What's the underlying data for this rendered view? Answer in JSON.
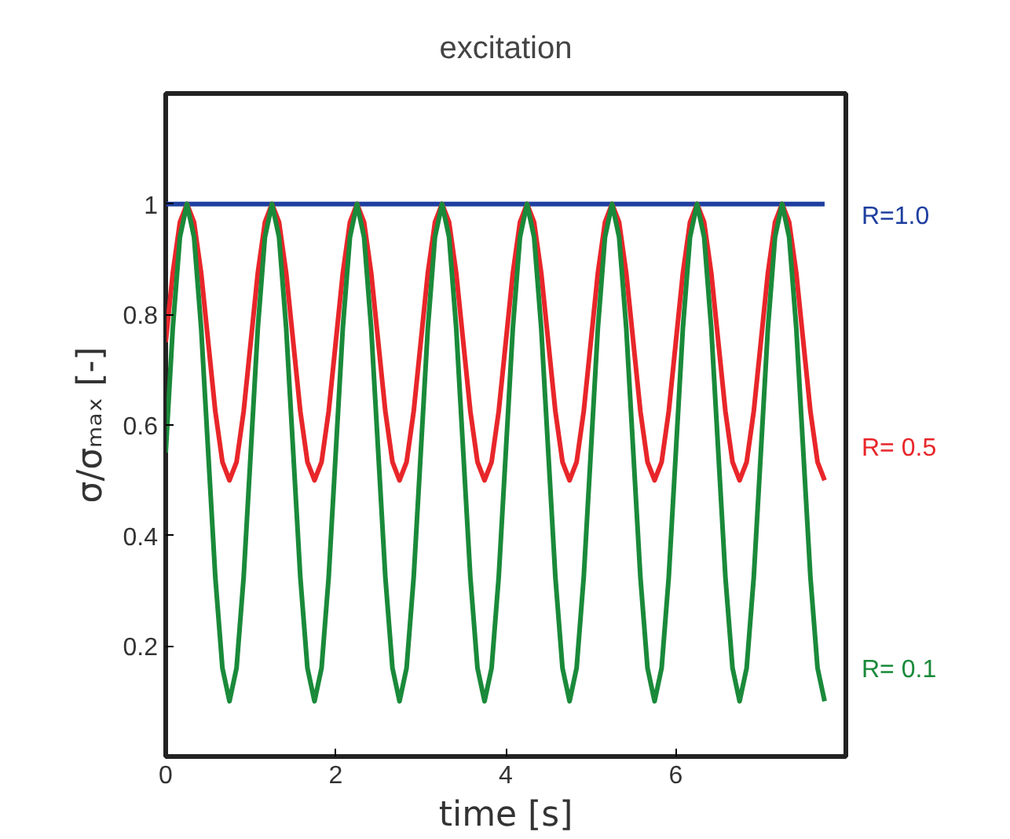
{
  "chart_data": {
    "type": "line",
    "title": "excitation",
    "xlabel": "time [s]",
    "ylabel": "σ/σₘₐₓ [-]",
    "xlim": [
      0,
      8
    ],
    "ylim": [
      0,
      1.2
    ],
    "xticks": [
      0,
      2,
      4,
      6
    ],
    "yticks": [
      0.2,
      0.4,
      0.6,
      0.8,
      1
    ],
    "grid": false,
    "x": [
      0,
      0.083,
      0.167,
      0.25,
      0.333,
      0.417,
      0.5,
      0.583,
      0.667,
      0.75,
      0.833,
      0.917,
      1,
      1.083,
      1.167,
      1.25,
      1.333,
      1.417,
      1.5,
      1.583,
      1.667,
      1.75,
      1.833,
      1.917,
      2,
      2.083,
      2.167,
      2.25,
      2.333,
      2.417,
      2.5,
      2.583,
      2.667,
      2.75,
      2.833,
      2.917,
      3,
      3.083,
      3.167,
      3.25,
      3.333,
      3.417,
      3.5,
      3.583,
      3.667,
      3.75,
      3.833,
      3.917,
      4,
      4.083,
      4.167,
      4.25,
      4.333,
      4.417,
      4.5,
      4.583,
      4.667,
      4.75,
      4.833,
      4.917,
      5,
      5.083,
      5.167,
      5.25,
      5.333,
      5.417,
      5.5,
      5.583,
      5.667,
      5.75,
      5.833,
      5.917,
      6,
      6.083,
      6.167,
      6.25,
      6.333,
      6.417,
      6.5,
      6.583,
      6.667,
      6.75,
      6.833,
      6.917,
      7,
      7.083,
      7.167,
      7.25,
      7.333,
      7.417,
      7.5,
      7.583,
      7.667,
      7.75
    ],
    "series": [
      {
        "name": "R=1.0",
        "color": "#1f3fa0",
        "x": [
          0,
          7.75
        ],
        "values": [
          1,
          1
        ]
      },
      {
        "name": "R= 0.5",
        "color": "#e8262a",
        "values": [
          0.75,
          0.875,
          0.967,
          1,
          0.967,
          0.875,
          0.75,
          0.625,
          0.533,
          0.5,
          0.533,
          0.625,
          0.75,
          0.875,
          0.967,
          1,
          0.967,
          0.875,
          0.75,
          0.625,
          0.533,
          0.5,
          0.533,
          0.625,
          0.75,
          0.875,
          0.967,
          1,
          0.967,
          0.875,
          0.75,
          0.625,
          0.533,
          0.5,
          0.533,
          0.625,
          0.75,
          0.875,
          0.967,
          1,
          0.967,
          0.875,
          0.75,
          0.625,
          0.533,
          0.5,
          0.533,
          0.625,
          0.75,
          0.875,
          0.967,
          1,
          0.967,
          0.875,
          0.75,
          0.625,
          0.533,
          0.5,
          0.533,
          0.625,
          0.75,
          0.875,
          0.967,
          1,
          0.967,
          0.875,
          0.75,
          0.625,
          0.533,
          0.5,
          0.533,
          0.625,
          0.75,
          0.875,
          0.967,
          1,
          0.967,
          0.875,
          0.75,
          0.625,
          0.533,
          0.5,
          0.533,
          0.625,
          0.75,
          0.875,
          0.967,
          1,
          0.967,
          0.875,
          0.75,
          0.625,
          0.533,
          0.5
        ]
      },
      {
        "name": "R= 0.1",
        "color": "#1a8a3a",
        "values": [
          0.55,
          0.775,
          0.94,
          1,
          0.94,
          0.775,
          0.55,
          0.325,
          0.16,
          0.1,
          0.16,
          0.325,
          0.55,
          0.775,
          0.94,
          1,
          0.94,
          0.775,
          0.55,
          0.325,
          0.16,
          0.1,
          0.16,
          0.325,
          0.55,
          0.775,
          0.94,
          1,
          0.94,
          0.775,
          0.55,
          0.325,
          0.16,
          0.1,
          0.16,
          0.325,
          0.55,
          0.775,
          0.94,
          1,
          0.94,
          0.775,
          0.55,
          0.325,
          0.16,
          0.1,
          0.16,
          0.325,
          0.55,
          0.775,
          0.94,
          1,
          0.94,
          0.775,
          0.55,
          0.325,
          0.16,
          0.1,
          0.16,
          0.325,
          0.55,
          0.775,
          0.94,
          1,
          0.94,
          0.775,
          0.55,
          0.325,
          0.16,
          0.1,
          0.16,
          0.325,
          0.55,
          0.775,
          0.94,
          1,
          0.94,
          0.775,
          0.55,
          0.325,
          0.16,
          0.1,
          0.16,
          0.325,
          0.55,
          0.775,
          0.94,
          1,
          0.94,
          0.775,
          0.55,
          0.325,
          0.16,
          0.1
        ]
      }
    ]
  }
}
